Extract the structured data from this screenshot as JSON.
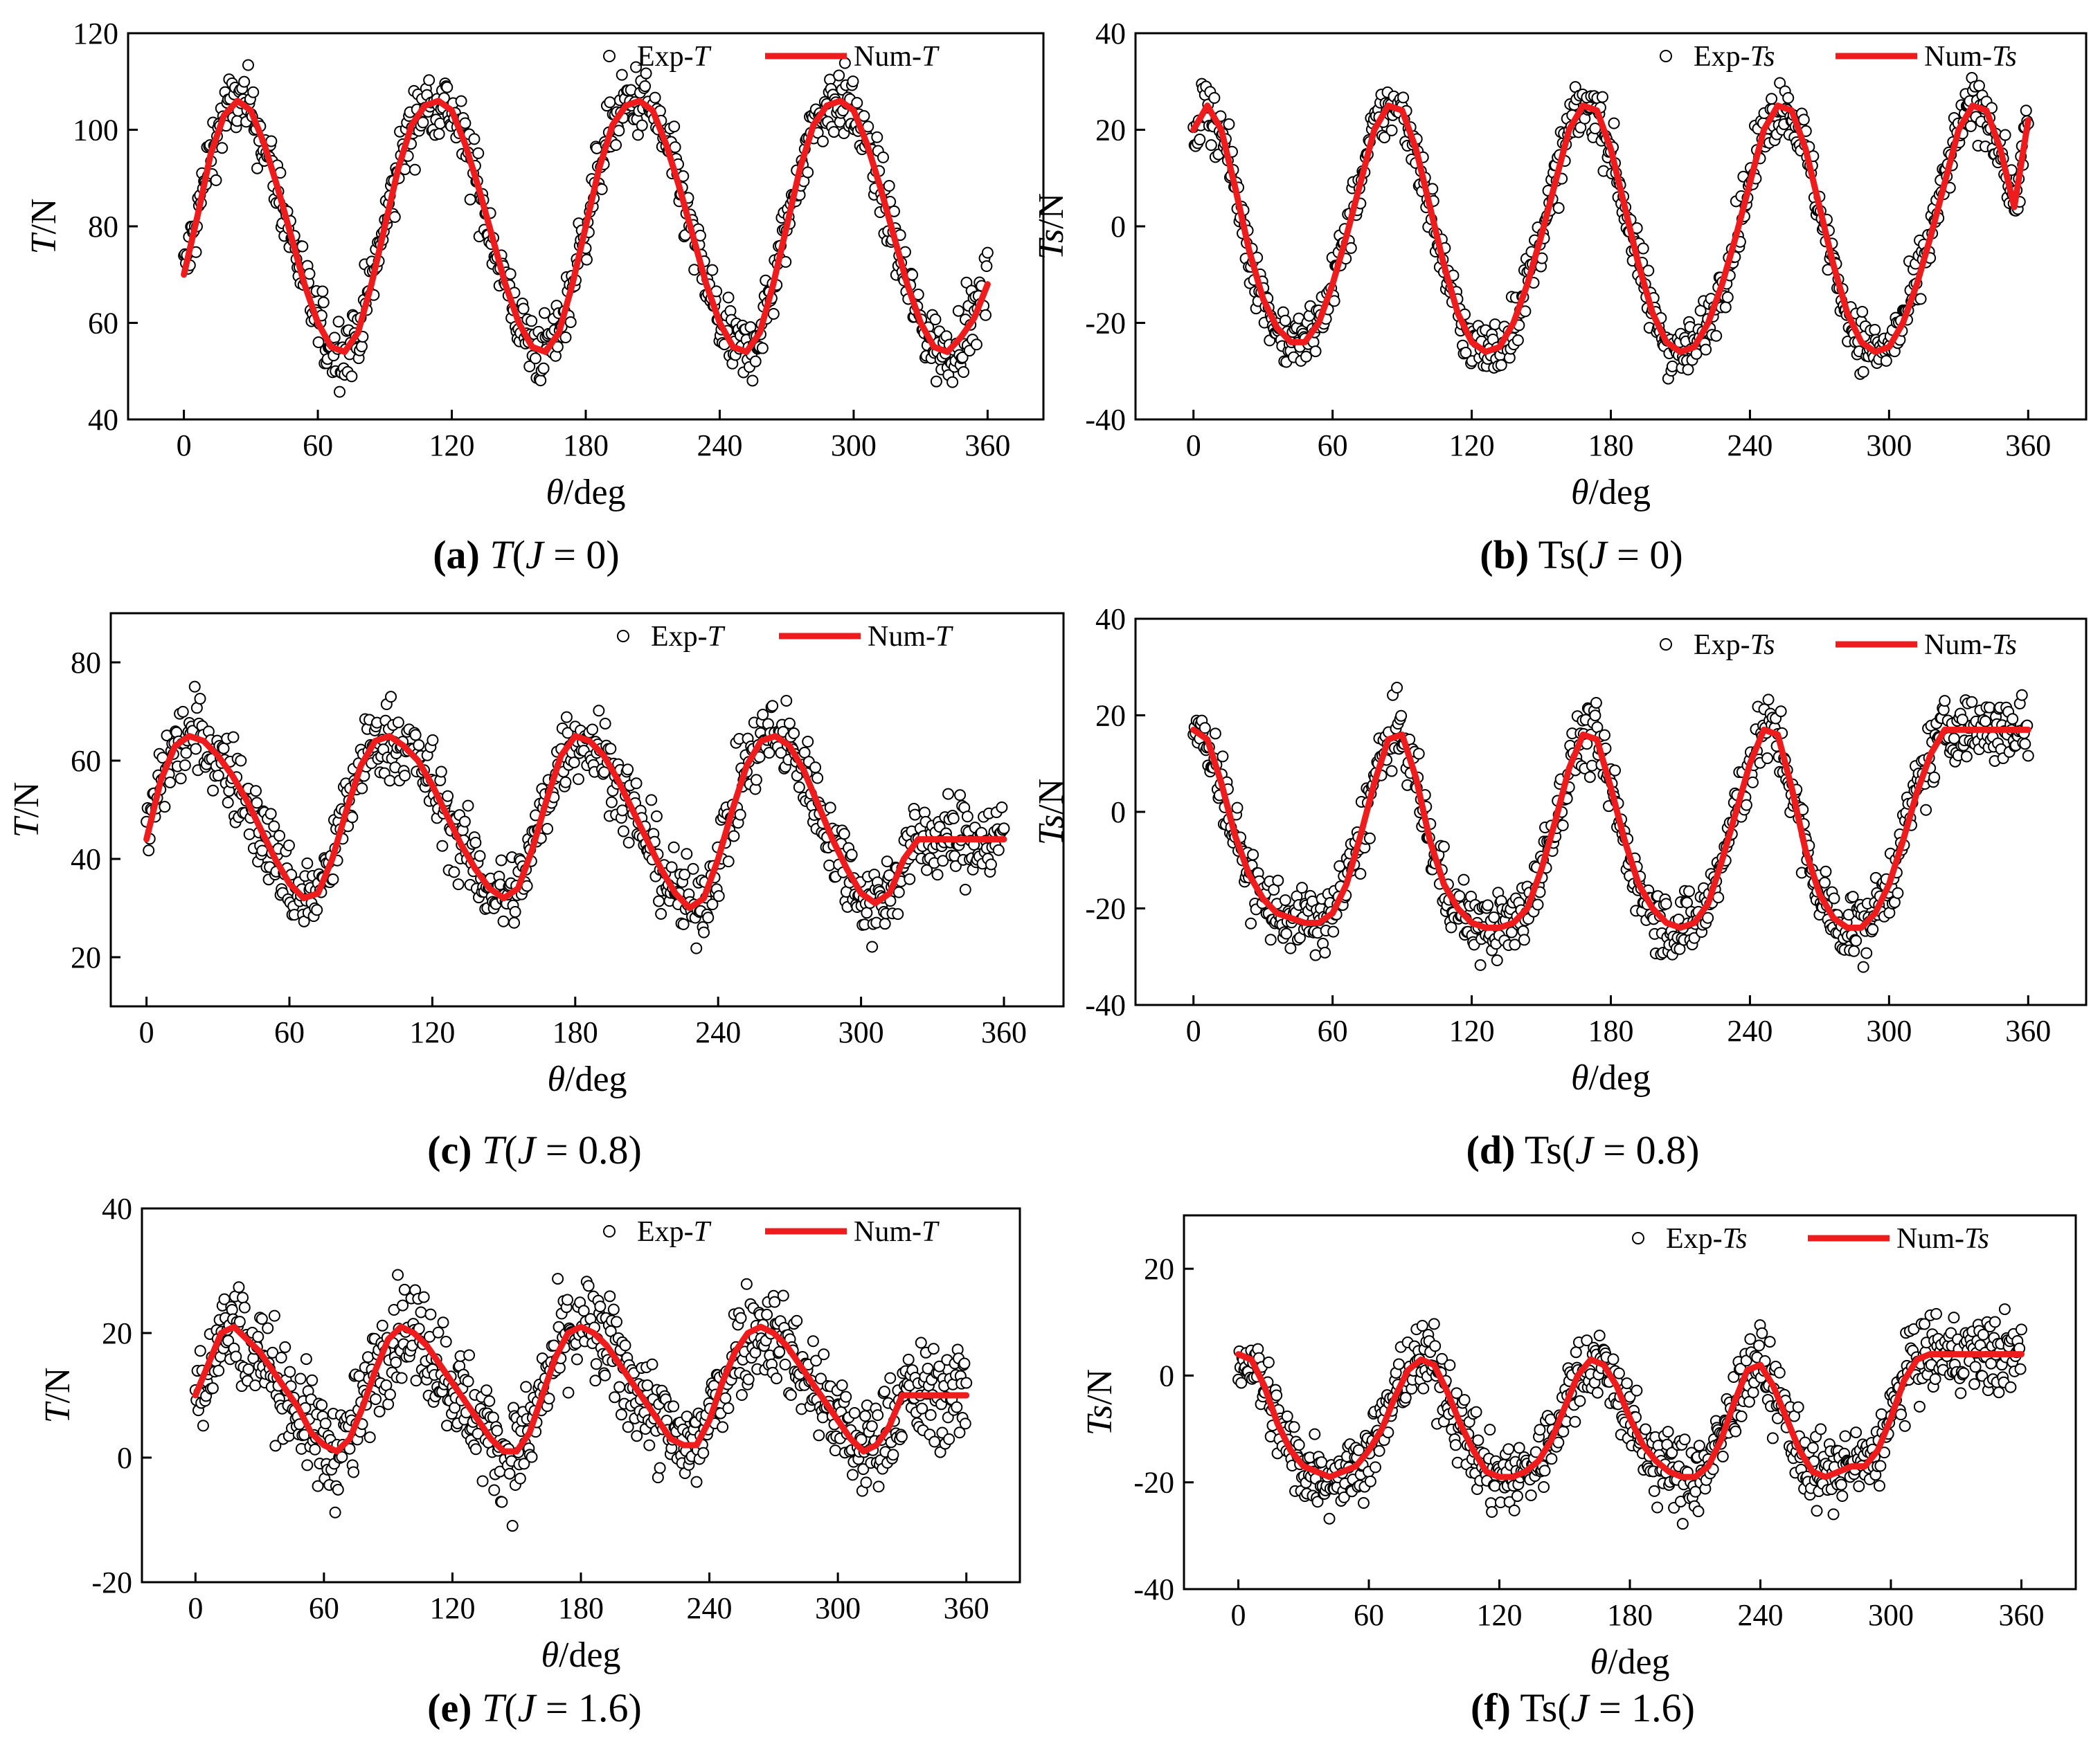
{
  "chart_data": [
    {
      "id": "a",
      "type": "line+scatter",
      "caption": {
        "letter": "(a)",
        "var": "T",
        "open": "(",
        "param": "J",
        "rest": " = 0)"
      },
      "xlabel": {
        "var": "θ",
        "unit": "/deg"
      },
      "ylabel": {
        "var": "T",
        "unit": "/N"
      },
      "xlim": [
        -25,
        385
      ],
      "ylim": [
        40,
        120
      ],
      "xticks": [
        0,
        60,
        120,
        180,
        240,
        300,
        360
      ],
      "yticks": [
        40,
        60,
        80,
        100,
        120
      ],
      "legend": {
        "position": "top-right",
        "exp_prefix": "Exp-",
        "exp_var": "T",
        "num_prefix": "Num-",
        "num_var": "T"
      },
      "colors": {
        "num": "#ee1c1c",
        "exp": "#000000"
      },
      "series": [
        {
          "name": "Num-T",
          "style": "line",
          "x": [
            0,
            6,
            12,
            18,
            24,
            30,
            36,
            42,
            48,
            54,
            60,
            66,
            72,
            78,
            84,
            90,
            96,
            102,
            108,
            114,
            120,
            126,
            132,
            138,
            144,
            150,
            156,
            162,
            168,
            174,
            180,
            186,
            192,
            198,
            204,
            210,
            216,
            222,
            228,
            234,
            240,
            246,
            252,
            258,
            264,
            270,
            276,
            282,
            288,
            294,
            300,
            306,
            312,
            318,
            324,
            330,
            336,
            342,
            348,
            354,
            360
          ],
          "y": [
            70,
            82,
            95,
            103,
            106,
            104,
            97,
            88,
            78,
            68,
            60,
            55,
            54,
            58,
            68,
            80,
            92,
            101,
            105,
            106,
            104,
            97,
            88,
            78,
            68,
            60,
            55,
            54,
            58,
            68,
            80,
            92,
            101,
            105,
            106,
            104,
            97,
            88,
            78,
            68,
            60,
            55,
            54,
            58,
            68,
            80,
            92,
            101,
            105,
            106,
            104,
            97,
            88,
            78,
            68,
            60,
            55,
            54,
            57,
            61,
            68
          ]
        },
        {
          "name": "Exp-T",
          "style": "scatter",
          "spread": 3.5,
          "n_per_segment": 8
        }
      ]
    },
    {
      "id": "b",
      "type": "line+scatter",
      "caption": {
        "letter": "(b)",
        "var": "Ts",
        "open": "(",
        "param": "J",
        "rest": " = 0)"
      },
      "xlabel": {
        "var": "θ",
        "unit": "/deg"
      },
      "ylabel": {
        "var": "Ts",
        "unit": "/N"
      },
      "xlim": [
        -25,
        385
      ],
      "ylim": [
        -40,
        40
      ],
      "xticks": [
        0,
        60,
        120,
        180,
        240,
        300,
        360
      ],
      "yticks": [
        -40,
        -20,
        0,
        20,
        40
      ],
      "legend": {
        "position": "top-right",
        "exp_prefix": "Exp-",
        "exp_var": "Ts",
        "num_prefix": "Num-",
        "num_var": "Ts"
      },
      "colors": {
        "num": "#ee1c1c",
        "exp": "#000000"
      },
      "series": [
        {
          "name": "Num-Ts",
          "style": "line",
          "x": [
            0,
            6,
            12,
            18,
            24,
            30,
            36,
            42,
            48,
            54,
            60,
            66,
            72,
            78,
            84,
            90,
            96,
            102,
            108,
            114,
            120,
            126,
            132,
            138,
            144,
            150,
            156,
            162,
            168,
            174,
            180,
            186,
            192,
            198,
            204,
            210,
            216,
            222,
            228,
            234,
            240,
            246,
            252,
            258,
            264,
            270,
            276,
            282,
            288,
            294,
            300,
            306,
            312,
            318,
            324,
            330,
            336,
            342,
            348,
            354,
            360
          ],
          "y": [
            20,
            25,
            20,
            8,
            -5,
            -15,
            -21,
            -24,
            -24,
            -20,
            -12,
            -2,
            9,
            20,
            25,
            24,
            16,
            4,
            -8,
            -18,
            -24,
            -26,
            -25,
            -20,
            -12,
            -2,
            9,
            20,
            25,
            24,
            16,
            4,
            -8,
            -18,
            -24,
            -26,
            -25,
            -20,
            -12,
            -2,
            9,
            20,
            25,
            24,
            16,
            4,
            -8,
            -18,
            -24,
            -26,
            -25,
            -20,
            -12,
            -2,
            9,
            20,
            25,
            24,
            16,
            4,
            22
          ]
        },
        {
          "name": "Exp-Ts",
          "style": "scatter",
          "spread": 3,
          "n_per_segment": 8
        }
      ]
    },
    {
      "id": "c",
      "type": "line+scatter",
      "caption": {
        "letter": "(c)",
        "var": "T",
        "open": "(",
        "param": "J",
        "rest": " = 0.8)"
      },
      "xlabel": {
        "var": "θ",
        "unit": "/deg"
      },
      "ylabel": {
        "var": "T",
        "unit": "/N"
      },
      "xlim": [
        -15,
        385
      ],
      "ylim": [
        10,
        90
      ],
      "xticks": [
        0,
        60,
        120,
        180,
        240,
        300,
        360
      ],
      "yticks": [
        20,
        40,
        60,
        80
      ],
      "legend": {
        "position": "top-right",
        "exp_prefix": "Exp-",
        "exp_var": "T",
        "num_prefix": "Num-",
        "num_var": "T"
      },
      "colors": {
        "num": "#ee1c1c",
        "exp": "#000000"
      },
      "series": [
        {
          "name": "Num-T",
          "style": "line",
          "x": [
            0,
            6,
            12,
            18,
            24,
            30,
            36,
            42,
            48,
            54,
            60,
            66,
            72,
            78,
            84,
            90,
            96,
            102,
            108,
            114,
            120,
            126,
            132,
            138,
            144,
            150,
            156,
            162,
            168,
            174,
            180,
            186,
            192,
            198,
            204,
            210,
            216,
            222,
            228,
            234,
            240,
            246,
            252,
            258,
            264,
            270,
            276,
            282,
            288,
            294,
            300,
            306,
            312,
            318,
            324,
            330,
            336,
            342,
            348,
            354,
            360
          ],
          "y": [
            44,
            56,
            63,
            65,
            64,
            61,
            57,
            52,
            46,
            40,
            35,
            32,
            33,
            40,
            50,
            59,
            64,
            65,
            63,
            60,
            55,
            49,
            43,
            38,
            34,
            32,
            34,
            42,
            52,
            61,
            65,
            64,
            61,
            56,
            50,
            44,
            38,
            33,
            30,
            32,
            40,
            50,
            59,
            64,
            65,
            63,
            58,
            51,
            44,
            38,
            33,
            31,
            33,
            40,
            44,
            44,
            44,
            44,
            44,
            44,
            44
          ]
        },
        {
          "name": "Exp-T",
          "style": "scatter",
          "spread": 4,
          "n_per_segment": 8
        }
      ]
    },
    {
      "id": "d",
      "type": "line+scatter",
      "caption": {
        "letter": "(d)",
        "var": "Ts",
        "open": "(",
        "param": "J",
        "rest": " = 0.8)"
      },
      "xlabel": {
        "var": "θ",
        "unit": "/deg"
      },
      "ylabel": {
        "var": "Ts",
        "unit": "/N"
      },
      "xlim": [
        -25,
        385
      ],
      "ylim": [
        -40,
        40
      ],
      "xticks": [
        0,
        60,
        120,
        180,
        240,
        300,
        360
      ],
      "yticks": [
        -40,
        -20,
        0,
        20,
        40
      ],
      "legend": {
        "position": "top-right",
        "exp_prefix": "Exp-",
        "exp_var": "Ts",
        "num_prefix": "Num-",
        "num_var": "Ts"
      },
      "colors": {
        "num": "#ee1c1c",
        "exp": "#000000"
      },
      "series": [
        {
          "name": "Num-Ts",
          "style": "line",
          "x": [
            0,
            6,
            12,
            18,
            24,
            30,
            36,
            42,
            48,
            54,
            60,
            66,
            72,
            78,
            84,
            90,
            96,
            102,
            108,
            114,
            120,
            126,
            132,
            138,
            144,
            150,
            156,
            162,
            168,
            174,
            180,
            186,
            192,
            198,
            204,
            210,
            216,
            222,
            228,
            234,
            240,
            246,
            252,
            258,
            264,
            270,
            276,
            282,
            288,
            294,
            300,
            306,
            312,
            318,
            324,
            330,
            336,
            342,
            348,
            354,
            360
          ],
          "y": [
            17,
            15,
            6,
            -5,
            -13,
            -18,
            -21,
            -22,
            -23,
            -23,
            -21,
            -15,
            -5,
            6,
            15,
            16,
            7,
            -6,
            -15,
            -20,
            -23,
            -24,
            -24,
            -23,
            -20,
            -12,
            -2,
            9,
            16,
            15,
            5,
            -6,
            -15,
            -20,
            -23,
            -24,
            -23,
            -19,
            -10,
            0,
            10,
            17,
            16,
            5,
            -8,
            -17,
            -22,
            -24,
            -24,
            -21,
            -15,
            -6,
            4,
            12,
            17,
            17,
            17,
            17,
            17,
            17,
            17
          ]
        },
        {
          "name": "Exp-Ts",
          "style": "scatter",
          "spread": 3.5,
          "n_per_segment": 8
        }
      ]
    },
    {
      "id": "e",
      "type": "line+scatter",
      "caption": {
        "letter": "(e)",
        "var": "T",
        "open": "(",
        "param": "J",
        "rest": " = 1.6)"
      },
      "xlabel": {
        "var": "θ",
        "unit": "/deg"
      },
      "ylabel": {
        "var": "T",
        "unit": "/N"
      },
      "xlim": [
        -25,
        385
      ],
      "ylim": [
        -20,
        40
      ],
      "xticks": [
        0,
        60,
        120,
        180,
        240,
        300,
        360
      ],
      "yticks": [
        -20,
        0,
        20,
        40
      ],
      "legend": {
        "position": "top-right",
        "exp_prefix": "Exp-",
        "exp_var": "T",
        "num_prefix": "Num-",
        "num_var": "T"
      },
      "colors": {
        "num": "#ee1c1c",
        "exp": "#000000"
      },
      "series": [
        {
          "name": "Num-T",
          "style": "line",
          "x": [
            0,
            6,
            12,
            18,
            24,
            30,
            36,
            42,
            48,
            54,
            60,
            66,
            72,
            78,
            84,
            90,
            96,
            102,
            108,
            114,
            120,
            126,
            132,
            138,
            144,
            150,
            156,
            162,
            168,
            174,
            180,
            186,
            192,
            198,
            204,
            210,
            216,
            222,
            228,
            234,
            240,
            246,
            252,
            258,
            264,
            270,
            276,
            282,
            288,
            294,
            300,
            306,
            312,
            318,
            324,
            330,
            336,
            342,
            348,
            354,
            360
          ],
          "y": [
            10,
            15,
            20,
            21,
            19,
            17,
            14,
            11,
            8,
            4,
            2,
            1,
            3,
            8,
            14,
            19,
            21,
            20,
            18,
            15,
            12,
            9,
            6,
            3,
            1,
            1,
            4,
            10,
            16,
            20,
            21,
            20,
            18,
            15,
            12,
            9,
            6,
            3,
            2,
            2,
            6,
            12,
            17,
            20,
            21,
            20,
            18,
            15,
            12,
            9,
            6,
            3,
            1,
            2,
            5,
            10,
            10,
            10,
            10,
            10,
            10
          ]
        },
        {
          "name": "Exp-T",
          "style": "scatter",
          "spread": 4,
          "n_per_segment": 8
        }
      ]
    },
    {
      "id": "f",
      "type": "line+scatter",
      "caption": {
        "letter": "(f)",
        "var": "Ts",
        "open": "(",
        "param": "J",
        "rest": " = 1.6)"
      },
      "xlabel": {
        "var": "θ",
        "unit": "/deg"
      },
      "ylabel": {
        "var": "Ts",
        "unit": "/N"
      },
      "xlim": [
        -25,
        385
      ],
      "ylim": [
        -40,
        30
      ],
      "xticks": [
        0,
        60,
        120,
        180,
        240,
        300,
        360
      ],
      "yticks": [
        -40,
        -20,
        0,
        20
      ],
      "legend": {
        "position": "top-right",
        "exp_prefix": "Exp-",
        "exp_var": "Ts",
        "num_prefix": "Num-",
        "num_var": "Ts"
      },
      "colors": {
        "num": "#ee1c1c",
        "exp": "#000000"
      },
      "series": [
        {
          "name": "Num-Ts",
          "style": "line",
          "x": [
            0,
            6,
            12,
            18,
            24,
            30,
            36,
            42,
            48,
            54,
            60,
            66,
            72,
            78,
            84,
            90,
            96,
            102,
            108,
            114,
            120,
            126,
            132,
            138,
            144,
            150,
            156,
            162,
            168,
            174,
            180,
            186,
            192,
            198,
            204,
            210,
            216,
            222,
            228,
            234,
            240,
            246,
            252,
            258,
            264,
            270,
            276,
            282,
            288,
            294,
            300,
            306,
            312,
            318,
            324,
            330,
            336,
            342,
            348,
            354,
            360
          ],
          "y": [
            4,
            3,
            -2,
            -9,
            -14,
            -17,
            -18,
            -19,
            -18,
            -17,
            -14,
            -10,
            -4,
            1,
            3,
            2,
            -3,
            -9,
            -14,
            -18,
            -19,
            -19,
            -18,
            -16,
            -12,
            -6,
            0,
            3,
            2,
            -2,
            -8,
            -13,
            -16,
            -18,
            -19,
            -19,
            -17,
            -12,
            -5,
            1,
            2,
            -2,
            -8,
            -14,
            -18,
            -19,
            -18,
            -17,
            -17,
            -14,
            -8,
            -1,
            3,
            4,
            4,
            4,
            4,
            4,
            4,
            4,
            4
          ]
        },
        {
          "name": "Exp-Ts",
          "style": "scatter",
          "spread": 3.5,
          "n_per_segment": 8
        }
      ]
    }
  ]
}
